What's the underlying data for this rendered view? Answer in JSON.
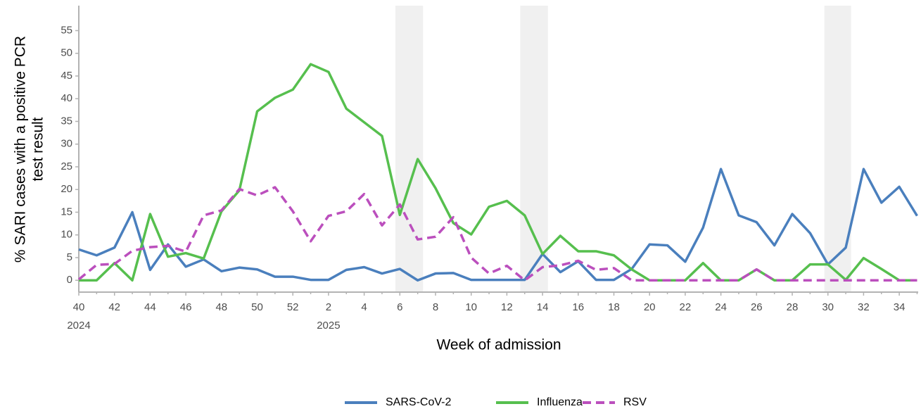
{
  "chart_data": {
    "type": "line",
    "y_label": [
      "% SARI cases with a positive PCR",
      "test result"
    ],
    "x_label": "Week of admission",
    "categories": [
      "40",
      null,
      "42",
      null,
      "44",
      null,
      "46",
      null,
      "48",
      null,
      "50",
      null,
      "52",
      null,
      "2",
      null,
      "4",
      null,
      "6",
      null,
      "8",
      null,
      "10",
      null,
      "12",
      null,
      "14",
      null,
      "16",
      null,
      "18",
      null,
      "20",
      null,
      "22",
      null,
      "24",
      null,
      "26",
      null,
      "28",
      null,
      "30",
      null,
      "32",
      null,
      "34",
      null
    ],
    "category_years": [
      "2024",
      null,
      null,
      null,
      null,
      null,
      null,
      null,
      null,
      null,
      null,
      null,
      null,
      null,
      "2025",
      null,
      null,
      null,
      null,
      null,
      null,
      null,
      null,
      null,
      null,
      null,
      null,
      null,
      null,
      null,
      null,
      null,
      null,
      null,
      null,
      null,
      null,
      null,
      null,
      null,
      null,
      null,
      null,
      null,
      null,
      null,
      null,
      null
    ],
    "shaded_ranges": [
      [
        17.75,
        19.3
      ],
      [
        24.75,
        26.3
      ],
      [
        41.8,
        43.3
      ]
    ],
    "series": [
      {
        "name": "SARS-CoV-2",
        "color": "#4a7fbd",
        "dash": false,
        "values": [
          6.8,
          5.5,
          7.2,
          15,
          2.3,
          7.9,
          3.0,
          4.6,
          2.0,
          2.8,
          2.4,
          0.8,
          0.8,
          0.1,
          0.1,
          2.3,
          2.9,
          1.5,
          2.5,
          0,
          1.5,
          1.6,
          0.1,
          0.1,
          0.1,
          0.1,
          5.8,
          1.8,
          4.2,
          0.1,
          0.1,
          2.5,
          7.9,
          7.7,
          4.1,
          11.6,
          24.5,
          14.3,
          12.8,
          7.7,
          14.6,
          10.4,
          3.5,
          7.2,
          24.5,
          17.1,
          20.6,
          14.2
        ]
      },
      {
        "name": "Influenza",
        "color": "#56bf4e",
        "dash": false,
        "values": [
          0,
          0,
          3.8,
          0,
          14.6,
          5.2,
          6.0,
          4.8,
          15.2,
          19.8,
          37.2,
          40.2,
          42,
          47.6,
          45.9,
          37.8,
          34.8,
          31.8,
          14.4,
          26.7,
          20.3,
          12.6,
          10.1,
          16.2,
          17.5,
          14.3,
          5.8,
          9.8,
          6.4,
          6.4,
          5.5,
          2.4,
          0,
          0,
          0,
          3.8,
          0,
          0,
          2.4,
          0,
          0,
          3.5,
          3.5,
          0.1,
          4.9,
          2.5,
          0,
          0
        ]
      },
      {
        "name": "RSV",
        "color": "#bb4fbd",
        "dash": true,
        "values": [
          0.2,
          3.4,
          3.6,
          6.5,
          7.3,
          7.6,
          6.3,
          14.3,
          15.4,
          20.1,
          18.7,
          20.5,
          15.2,
          8.6,
          14.2,
          15.2,
          19.0,
          12.1,
          16.7,
          9.0,
          9.6,
          13.9,
          5.0,
          1.5,
          3.2,
          0,
          2.9,
          3.3,
          4.3,
          2.3,
          2.7,
          0,
          0,
          0,
          0,
          0,
          0,
          0,
          2.4,
          0,
          0,
          0,
          0,
          0,
          0,
          0,
          0,
          0
        ]
      }
    ],
    "ylim": [
      -2.6,
      60.5
    ],
    "yticks": [
      0,
      5,
      10,
      15,
      20,
      25,
      30,
      35,
      40,
      45,
      50,
      55
    ],
    "legend": "bottom"
  }
}
